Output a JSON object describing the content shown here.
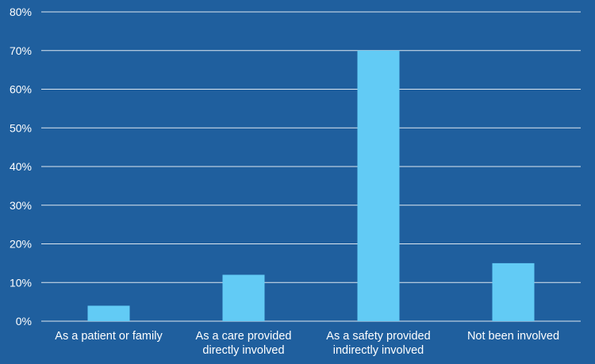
{
  "chart_data": {
    "type": "bar",
    "title": "",
    "xlabel": "",
    "ylabel": "",
    "categories": [
      [
        "As a patient or family"
      ],
      [
        "As a care provided",
        "directly involved"
      ],
      [
        "As a safety provided",
        "indirectly involved"
      ],
      [
        "Not been involved"
      ]
    ],
    "values": [
      4,
      12,
      70,
      15
    ],
    "ylim": [
      0,
      80
    ],
    "yticks": [
      0,
      10,
      20,
      30,
      40,
      50,
      60,
      70,
      80
    ],
    "ytick_labels": [
      "0%",
      "10%",
      "20%",
      "30%",
      "40%",
      "50%",
      "60%",
      "70%",
      "80%"
    ],
    "grid": true,
    "legend": "none",
    "colors": {
      "background": "#1f5f9e",
      "bar": "#62cbf5",
      "grid": "#ffffff",
      "text": "#ffffff"
    }
  }
}
